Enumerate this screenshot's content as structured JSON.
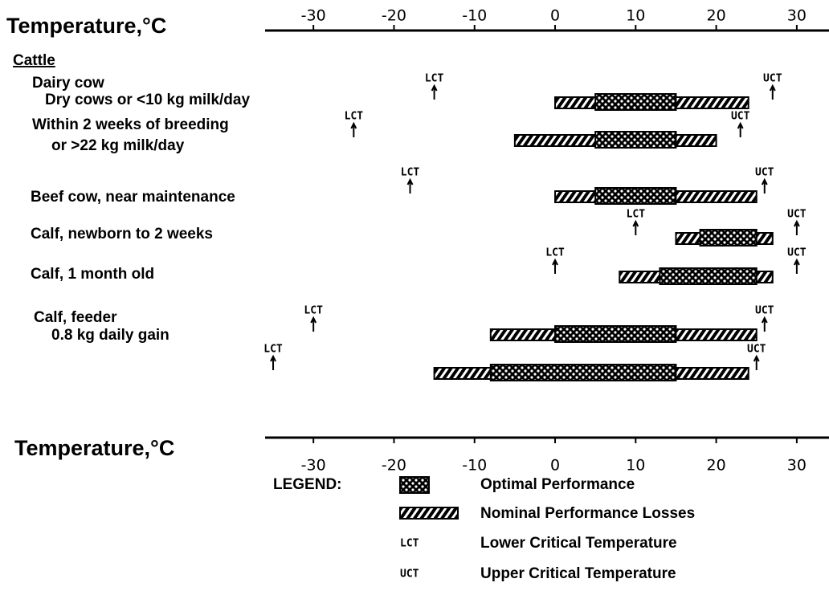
{
  "chart_data": {
    "type": "range",
    "axis_title": "Temperature,°C",
    "group_label": "Cattle",
    "xlim": [
      -36,
      34
    ],
    "xticks": [
      -30,
      -20,
      -10,
      0,
      10,
      20,
      30
    ],
    "lct_label": "LCT",
    "uct_label": "UCT",
    "rows": [
      {
        "labels": [
          "Dairy cow",
          "Dry cows or <10 kg milk/day"
        ],
        "lct": -15,
        "uct": 27,
        "nominal": [
          0,
          24
        ],
        "optimal": [
          5,
          15
        ]
      },
      {
        "labels": [
          "Within 2 weeks of breeding",
          "or >22 kg milk/day"
        ],
        "lct": -25,
        "uct": 23,
        "nominal": [
          -5,
          20
        ],
        "optimal": [
          5,
          15
        ]
      },
      {
        "labels": [
          "Beef cow, near maintenance"
        ],
        "lct": -18,
        "uct": 26,
        "nominal": [
          0,
          25
        ],
        "optimal": [
          5,
          15
        ]
      },
      {
        "labels": [
          "Calf, newborn to 2 weeks"
        ],
        "lct": 10,
        "uct": 30,
        "nominal": [
          15,
          27
        ],
        "optimal": [
          18,
          25
        ]
      },
      {
        "labels": [
          "Calf, 1 month old"
        ],
        "lct": 0,
        "uct": 30,
        "nominal": [
          8,
          27
        ],
        "optimal": [
          13,
          25
        ]
      },
      {
        "labels": [
          "Calf, feeder",
          "0.8 kg daily gain"
        ],
        "lct": -30,
        "uct": 26,
        "nominal": [
          -8,
          25
        ],
        "optimal": [
          0,
          15
        ]
      },
      {
        "labels": [],
        "lct": -35,
        "uct": 25,
        "nominal": [
          -15,
          24
        ],
        "optimal": [
          -8,
          15
        ]
      }
    ],
    "legend": {
      "title": "LEGEND:",
      "items": [
        "Optimal Performance",
        "Nominal Performance Losses",
        "Lower Critical Temperature",
        "Upper Critical Temperature"
      ]
    }
  }
}
